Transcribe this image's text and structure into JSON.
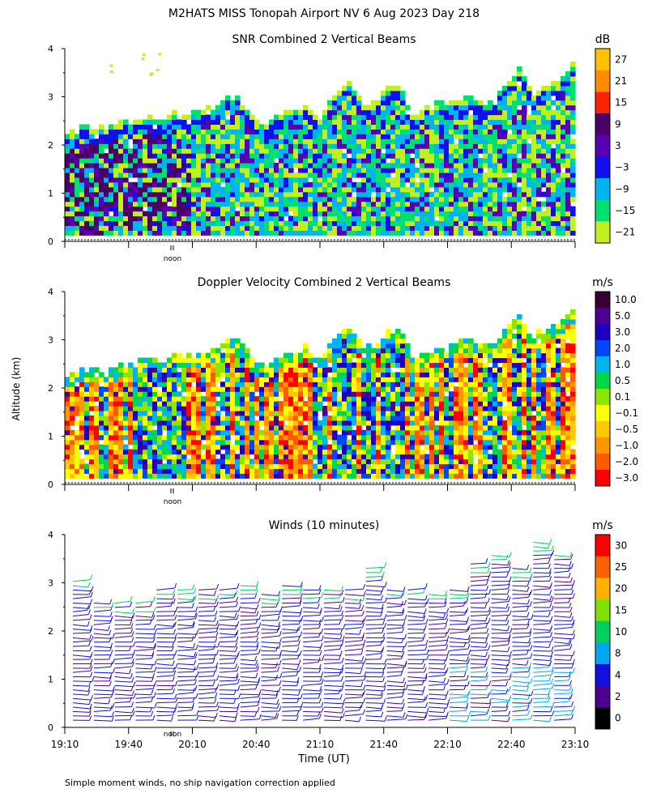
{
  "header": {
    "title": "M2HATS MISS Tonopah Airport NV   6 Aug 2023 Day 218"
  },
  "footer": {
    "note": "Simple moment winds, no ship navigation correction applied"
  },
  "chart_data": [
    {
      "type": "heatmap",
      "title": "SNR Combined 2 Vertical Beams",
      "units": "dB",
      "ylabel": "",
      "ylim": [
        0,
        4
      ],
      "yticks": [
        "0",
        "1",
        "2",
        "3",
        "4"
      ],
      "noon_marker": "noon",
      "colorbar": {
        "labels": [
          "27",
          "21",
          "15",
          "9",
          "3",
          "−3",
          "−9",
          "−15",
          "−21"
        ],
        "colors": [
          "#ffc000",
          "#ff8c00",
          "#ff2200",
          "#4a0066",
          "#5a00b4",
          "#1010ee",
          "#00b4f0",
          "#00e070",
          "#c0f020"
        ]
      },
      "top_km": [
        2.2,
        2.3,
        2.4,
        2.3,
        2.5,
        2.4,
        2.6,
        2.5,
        2.7,
        2.6,
        2.7,
        2.7,
        3.0,
        2.9,
        2.5,
        2.4,
        2.6,
        2.7,
        2.8,
        2.5,
        2.9,
        3.3,
        2.9,
        2.8,
        3.1,
        3.2,
        2.6,
        2.7,
        2.8,
        2.9,
        3.0,
        2.9,
        2.8,
        3.2,
        3.5,
        3.0,
        3.2,
        3.3,
        3.6
      ]
    },
    {
      "type": "heatmap",
      "title": "Doppler Velocity Combined 2 Vertical Beams",
      "units": "m/s",
      "ylabel": "Altitude (km)",
      "ylim": [
        0,
        4
      ],
      "yticks": [
        "0",
        "1",
        "2",
        "3",
        "4"
      ],
      "noon_marker": "noon",
      "colorbar": {
        "labels": [
          "10.0",
          "5.0",
          "3.0",
          "2.0",
          "1.0",
          "0.5",
          "0.1",
          "−0.1",
          "−0.5",
          "−1.0",
          "−2.0",
          "−3.0"
        ],
        "colors": [
          "#3a0030",
          "#500090",
          "#2000c0",
          "#0048ff",
          "#00b4f0",
          "#00d84a",
          "#8ce600",
          "#ffff00",
          "#ffc800",
          "#ff9600",
          "#ff5a00",
          "#ff0000"
        ]
      },
      "top_km": [
        2.2,
        2.3,
        2.4,
        2.3,
        2.5,
        2.4,
        2.6,
        2.5,
        2.7,
        2.6,
        2.7,
        2.7,
        3.0,
        2.9,
        2.5,
        2.4,
        2.6,
        2.7,
        2.8,
        2.5,
        2.9,
        3.3,
        2.9,
        2.8,
        3.1,
        3.2,
        2.6,
        2.7,
        2.8,
        2.9,
        3.0,
        2.9,
        2.8,
        3.2,
        3.5,
        3.0,
        3.2,
        3.3,
        3.6
      ]
    },
    {
      "type": "wind-barbs",
      "title": "Winds (10 minutes)",
      "units": "m/s",
      "ylabel": "",
      "xlabel": "Time (UT)",
      "ylim": [
        0,
        4
      ],
      "yticks": [
        "0",
        "1",
        "2",
        "3",
        "4"
      ],
      "noon_marker": "noon",
      "x_tick_labels": [
        "19:10",
        "19:40",
        "20:10",
        "20:40",
        "21:10",
        "21:40",
        "22:10",
        "22:40",
        "23:10"
      ],
      "colorbar": {
        "labels": [
          "30",
          "25",
          "20",
          "15",
          "10",
          "8",
          "4",
          "2",
          "0"
        ],
        "colors": [
          "#ff0000",
          "#ff6000",
          "#ffb000",
          "#80e000",
          "#00d060",
          "#00a8f0",
          "#1010e0",
          "#500090",
          "#000000"
        ]
      },
      "column_tops_km": [
        3.1,
        2.6,
        2.6,
        2.6,
        2.9,
        2.9,
        2.9,
        2.9,
        3.0,
        2.8,
        3.0,
        2.9,
        2.9,
        2.9,
        3.3,
        2.9,
        2.9,
        2.8,
        2.9,
        3.4,
        3.6,
        3.3,
        3.9,
        3.6
      ]
    }
  ]
}
